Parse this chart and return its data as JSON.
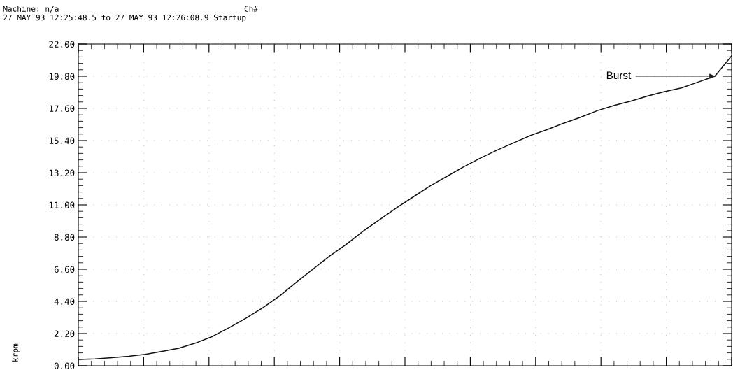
{
  "chart_data": {
    "type": "line",
    "title": "Machine: n/a",
    "subtitle": "27 MAY 93 12:25:48.5 to 27 MAY 93 12:26:08.9 Startup",
    "ylabel": "krpm",
    "categories": [
      null,
      null,
      null,
      null,
      null,
      null,
      null,
      null,
      null,
      null,
      null,
      null,
      null,
      null,
      null,
      null,
      null,
      null,
      null,
      null,
      null,
      null,
      null,
      null,
      null,
      null,
      null,
      null,
      null,
      null,
      null,
      null,
      null,
      null,
      null,
      null,
      null,
      null,
      null,
      null
    ],
    "series": [
      {
        "color": "#111111",
        "values": [
          0.43,
          0.47,
          0.55,
          0.65,
          0.78,
          0.98,
          1.2,
          1.55,
          2.0,
          2.6,
          3.25,
          3.95,
          4.75,
          5.7,
          6.6,
          7.5,
          8.3,
          9.2,
          10.0,
          10.8,
          11.55,
          12.3,
          12.95,
          13.6,
          14.2,
          14.75,
          15.25,
          15.75,
          16.15,
          16.6,
          17.0,
          17.45,
          17.8,
          18.1,
          18.45,
          18.75,
          19.0,
          19.4,
          19.8,
          21.2
        ]
      }
    ],
    "ylim": [
      0,
      22
    ],
    "yticks": [
      {
        "value": 0,
        "label": "0.00"
      },
      {
        "value": 2.2,
        "label": "2.20"
      },
      {
        "value": 4.4,
        "label": "4.40"
      },
      {
        "value": 6.6,
        "label": "6.60"
      },
      {
        "value": 8.8,
        "label": "8.80"
      },
      {
        "value": 11,
        "label": "11.00"
      },
      {
        "value": 13.2,
        "label": "13.20"
      },
      {
        "value": 15.4,
        "label": "15.40"
      },
      {
        "value": 17.6,
        "label": "17.60"
      },
      {
        "value": 19.8,
        "label": "19.80"
      },
      {
        "value": 22,
        "label": "22.00"
      }
    ],
    "tick_labels": "y",
    "grid": true,
    "line_style": "solid",
    "marker": "none",
    "annotations": [
      "Ch#",
      "Burst"
    ]
  }
}
